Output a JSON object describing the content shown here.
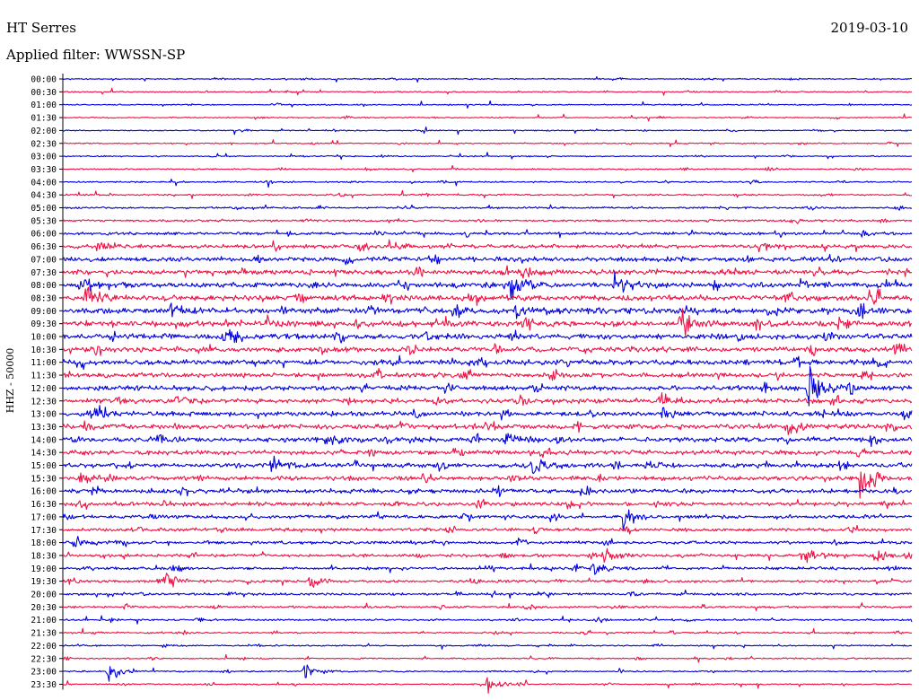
{
  "header": {
    "station": "HT Serres",
    "date": "2019-03-10",
    "filter": "Applied filter: WWSSN-SP"
  },
  "chart_data": {
    "type": "line",
    "title": "HT Serres",
    "subtitle": "Applied filter: WWSSN-SP",
    "date": "2019-03-10",
    "ylabel": "HHZ - 50000",
    "xlabel": "",
    "row_labels": [
      "00:00",
      "00:30",
      "01:00",
      "01:30",
      "02:00",
      "02:30",
      "03:00",
      "03:30",
      "04:00",
      "04:30",
      "05:00",
      "05:30",
      "06:00",
      "06:30",
      "07:00",
      "07:30",
      "08:00",
      "08:30",
      "09:00",
      "09:30",
      "10:00",
      "10:30",
      "11:00",
      "11:30",
      "12:00",
      "12:30",
      "13:00",
      "13:30",
      "14:00",
      "14:30",
      "15:00",
      "15:30",
      "16:00",
      "16:30",
      "17:00",
      "17:30",
      "18:00",
      "18:30",
      "19:00",
      "19:30",
      "20:00",
      "20:30",
      "21:00",
      "21:30",
      "22:00",
      "22:30",
      "23:00",
      "23:30"
    ],
    "row_colors": [
      "#0000dd",
      "#ee1144"
    ],
    "trace_minutes": 30,
    "noise_level": [
      0.5,
      0.5,
      0.5,
      0.5,
      0.5,
      0.5,
      0.5,
      0.6,
      0.6,
      0.7,
      0.8,
      0.9,
      1.2,
      1.6,
      1.9,
      2.0,
      2.2,
      2.4,
      2.5,
      2.5,
      2.3,
      2.2,
      2.1,
      2.0,
      2.0,
      2.0,
      2.0,
      2.0,
      2.0,
      1.9,
      1.9,
      1.8,
      1.7,
      1.6,
      1.5,
      1.4,
      1.3,
      1.3,
      1.2,
      1.1,
      1.0,
      0.9,
      0.8,
      0.7,
      0.6,
      0.6,
      0.6,
      0.6
    ],
    "events": [
      {
        "row": 13,
        "minute": 1.2,
        "amplitude": 6
      },
      {
        "row": 13,
        "minute": 11.5,
        "amplitude": 4
      },
      {
        "row": 15,
        "minute": 16.2,
        "amplitude": 5
      },
      {
        "row": 16,
        "minute": 0.6,
        "amplitude": 5
      },
      {
        "row": 16,
        "minute": 15.8,
        "amplitude": 14
      },
      {
        "row": 16,
        "minute": 19.5,
        "amplitude": 10
      },
      {
        "row": 17,
        "minute": 0.8,
        "amplitude": 12
      },
      {
        "row": 18,
        "minute": 3.8,
        "amplitude": 6
      },
      {
        "row": 18,
        "minute": 16.0,
        "amplitude": 5
      },
      {
        "row": 19,
        "minute": 21.8,
        "amplitude": 16
      },
      {
        "row": 20,
        "minute": 5.7,
        "amplitude": 11
      },
      {
        "row": 24,
        "minute": 26.3,
        "amplitude": 30
      },
      {
        "row": 25,
        "minute": 4.0,
        "amplitude": 6
      },
      {
        "row": 25,
        "minute": 21.1,
        "amplitude": 6
      },
      {
        "row": 26,
        "minute": 0.9,
        "amplitude": 7
      },
      {
        "row": 26,
        "minute": 21.2,
        "amplitude": 5
      },
      {
        "row": 27,
        "minute": 25.5,
        "amplitude": 9
      },
      {
        "row": 28,
        "minute": 3.5,
        "amplitude": 5
      },
      {
        "row": 28,
        "minute": 9.3,
        "amplitude": 6
      },
      {
        "row": 28,
        "minute": 15.6,
        "amplitude": 7
      },
      {
        "row": 30,
        "minute": 7.3,
        "amplitude": 9
      },
      {
        "row": 30,
        "minute": 16.6,
        "amplitude": 11
      },
      {
        "row": 30,
        "minute": 20.6,
        "amplitude": 5
      },
      {
        "row": 31,
        "minute": 0.6,
        "amplitude": 5
      },
      {
        "row": 31,
        "minute": 28.2,
        "amplitude": 22
      },
      {
        "row": 34,
        "minute": 19.8,
        "amplitude": 10
      },
      {
        "row": 36,
        "minute": 0.4,
        "amplitude": 8
      },
      {
        "row": 37,
        "minute": 19.1,
        "amplitude": 8
      },
      {
        "row": 37,
        "minute": 26.1,
        "amplitude": 9
      },
      {
        "row": 37,
        "minute": 28.7,
        "amplitude": 7
      },
      {
        "row": 38,
        "minute": 18.7,
        "amplitude": 8
      },
      {
        "row": 39,
        "minute": 3.6,
        "amplitude": 7
      },
      {
        "row": 39,
        "minute": 8.7,
        "amplitude": 7
      },
      {
        "row": 46,
        "minute": 1.6,
        "amplitude": 9
      },
      {
        "row": 46,
        "minute": 8.5,
        "amplitude": 7
      },
      {
        "row": 47,
        "minute": 15.0,
        "amplitude": 9
      }
    ]
  }
}
